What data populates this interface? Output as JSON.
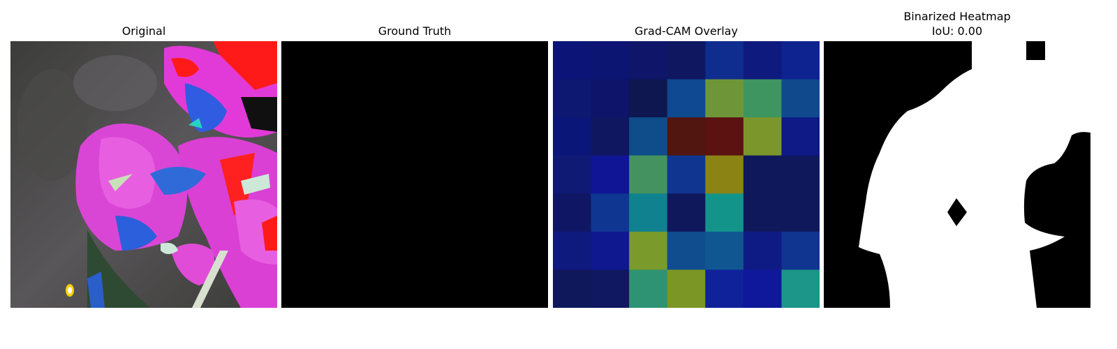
{
  "figure": {
    "panels": [
      {
        "title": "Original"
      },
      {
        "title": "Ground Truth"
      },
      {
        "title": "Grad-CAM Overlay"
      },
      {
        "title_line1": "Binarized Heatmap",
        "title_line2": "IoU: 0.00"
      }
    ],
    "gradcam": {
      "grid_size": 7,
      "cells": [
        [
          "#0c1577",
          "#0c1571",
          "#0f166a",
          "#0f1760",
          "#0f2c8f",
          "#0f1a7e",
          "#0f2390"
        ],
        [
          "#0d1870",
          "#0d1469",
          "#0e174f",
          "#0e4991",
          "#6e9638",
          "#3e9560",
          "#104a8c"
        ],
        [
          "#0b1679",
          "#0e1760",
          "#0f4d8a",
          "#521610",
          "#5c1210",
          "#7b962a",
          "#0f1a86"
        ],
        [
          "#0e1a74",
          "#0f1594",
          "#449260",
          "#0f3591",
          "#8b8414",
          "#10185c",
          "#10185c"
        ],
        [
          "#0f1764",
          "#0f3691",
          "#10818f",
          "#10185c",
          "#13948a",
          "#10185c",
          "#10185c"
        ],
        [
          "#0e1a7e",
          "#10188f",
          "#7a9a2c",
          "#0f4d8f",
          "#105791",
          "#0f1b85",
          "#0f3591"
        ],
        [
          "#10185c",
          "#0f1860",
          "#2d9372",
          "#7b9624",
          "#0f229a",
          "#0f189a",
          "#1b9688"
        ]
      ]
    }
  }
}
